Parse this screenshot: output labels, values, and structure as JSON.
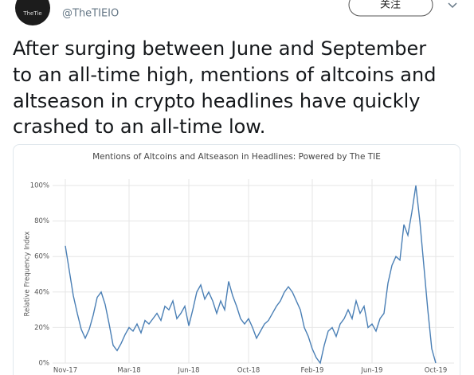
{
  "tweet": {
    "avatar_text": "TheTie",
    "handle": "@TheTIEIO",
    "follow_button": "关注",
    "text_lines": [
      "After surging between June and September",
      "to an all-time high, mentions of altcoins and",
      "altseason in crypto headlines have quickly",
      "crashed to an all-time low."
    ]
  },
  "chart_data": {
    "type": "line",
    "title": "Mentions of Altcoins and Altseason in Headlines: Powered by The TIE",
    "y_label": "Relative Frequency Index",
    "x": [
      0,
      1,
      2,
      3,
      4,
      5,
      6,
      7,
      8,
      9,
      10,
      11,
      12,
      13,
      14,
      15,
      16,
      17,
      18,
      19,
      20,
      21,
      22,
      23,
      24,
      25,
      26,
      27,
      28,
      29,
      30,
      31,
      32,
      33,
      34,
      35,
      36,
      37,
      38,
      39,
      40,
      41,
      42,
      43,
      44,
      45,
      46,
      47,
      48,
      49,
      50,
      51,
      52,
      53,
      54,
      55,
      56,
      57,
      58,
      59,
      60,
      61,
      62,
      63,
      64,
      65,
      66,
      67,
      68,
      69,
      70,
      71,
      72,
      73,
      74,
      75,
      76,
      77,
      78,
      79,
      80,
      81,
      82,
      83,
      84,
      85,
      86,
      87,
      88,
      89,
      90,
      91,
      92,
      93
    ],
    "series": [
      {
        "color": "#4a7fb5",
        "values": [
          66,
          52,
          38,
          28,
          19,
          14,
          19,
          27,
          37,
          40,
          33,
          22,
          10,
          7,
          11,
          16,
          20,
          18,
          22,
          17,
          24,
          22,
          25,
          28,
          24,
          32,
          30,
          35,
          25,
          28,
          32,
          21,
          30,
          40,
          44,
          36,
          40,
          35,
          28,
          35,
          30,
          46,
          38,
          32,
          25,
          22,
          25,
          20,
          14,
          18,
          22,
          24,
          28,
          32,
          35,
          40,
          43,
          40,
          35,
          30,
          20,
          15,
          8,
          3,
          0,
          10,
          18,
          20,
          15,
          22,
          25,
          30,
          25,
          35,
          28,
          32,
          20,
          22,
          18,
          25,
          28,
          45,
          55,
          60,
          58,
          78,
          72,
          85,
          100,
          80,
          55,
          30,
          8,
          0
        ]
      }
    ],
    "xlim": [
      0,
      93
    ],
    "xticks": [
      {
        "value": 0,
        "label": "Nov-17"
      },
      {
        "value": 16,
        "label": "Mar-18"
      },
      {
        "value": 31,
        "label": "Jun-18"
      },
      {
        "value": 46,
        "label": "Oct-18"
      },
      {
        "value": 62,
        "label": "Feb-19"
      },
      {
        "value": 77,
        "label": "Jun-19"
      },
      {
        "value": 93,
        "label": "Oct-19"
      }
    ],
    "ylim": [
      0,
      100
    ],
    "yticks": [
      {
        "value": 0,
        "label": "0%"
      },
      {
        "value": 20,
        "label": "20%"
      },
      {
        "value": 40,
        "label": "40%"
      },
      {
        "value": 60,
        "label": "60%"
      },
      {
        "value": 80,
        "label": "80%"
      },
      {
        "value": 100,
        "label": "100%"
      }
    ],
    "grid": true
  }
}
